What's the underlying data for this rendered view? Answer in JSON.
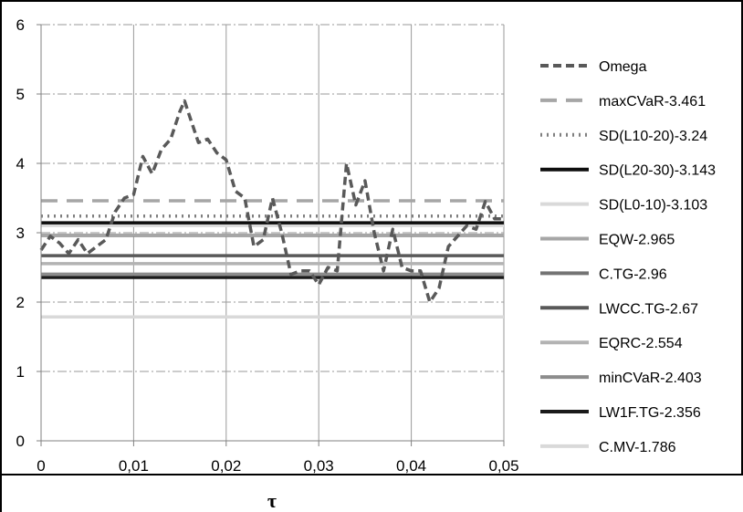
{
  "chart_data": {
    "type": "line",
    "xlabel": "τ",
    "ylabel": "",
    "xlim": [
      0,
      0.05
    ],
    "ylim": [
      0,
      6
    ],
    "x_ticks": [
      0,
      0.01,
      0.02,
      0.03,
      0.04,
      0.05
    ],
    "x_tick_labels": [
      "0",
      "0,01",
      "0,02",
      "0,03",
      "0,04",
      "0,05"
    ],
    "y_ticks": [
      0,
      1,
      2,
      3,
      4,
      5,
      6
    ],
    "y_tick_labels": [
      "0",
      "1",
      "2",
      "3",
      "4",
      "5",
      "6"
    ],
    "grid": true,
    "legend_position": "right",
    "series": [
      {
        "name": "Omega",
        "style": "dashed",
        "color": "#595959",
        "x": [
          0,
          0.001,
          0.002,
          0.003,
          0.004,
          0.005,
          0.006,
          0.007,
          0.008,
          0.009,
          0.01,
          0.011,
          0.012,
          0.013,
          0.014,
          0.015,
          0.0155,
          0.016,
          0.017,
          0.018,
          0.019,
          0.02,
          0.021,
          0.022,
          0.023,
          0.024,
          0.025,
          0.026,
          0.027,
          0.028,
          0.029,
          0.03,
          0.031,
          0.032,
          0.033,
          0.034,
          0.035,
          0.036,
          0.037,
          0.038,
          0.039,
          0.04,
          0.041,
          0.042,
          0.043,
          0.044,
          0.045,
          0.046,
          0.047,
          0.048,
          0.049,
          0.05
        ],
        "y": [
          2.75,
          2.95,
          2.85,
          2.7,
          2.9,
          2.7,
          2.8,
          2.9,
          3.3,
          3.5,
          3.55,
          4.1,
          3.85,
          4.2,
          4.35,
          4.75,
          4.9,
          4.7,
          4.3,
          4.35,
          4.15,
          4.05,
          3.6,
          3.5,
          2.8,
          2.9,
          3.5,
          3.0,
          2.4,
          2.45,
          2.45,
          2.25,
          2.5,
          2.45,
          4.0,
          3.4,
          3.75,
          3.0,
          2.45,
          3.05,
          2.5,
          2.45,
          2.45,
          2.0,
          2.2,
          2.8,
          2.95,
          3.1,
          3.05,
          3.45,
          3.2,
          3.2
        ]
      },
      {
        "name": "maxCVaR-3.461",
        "value": 3.461,
        "style": "longdash",
        "color": "#a6a6a6"
      },
      {
        "name": "SD(L10-20)-3.24",
        "value": 3.24,
        "style": "dotted",
        "color": "#7f7f7f"
      },
      {
        "name": "SD(L20-30)-3.143",
        "value": 3.143,
        "style": "solid",
        "color": "#0d0d0d"
      },
      {
        "name": "SD(L0-10)-3.103",
        "value": 3.103,
        "style": "solid",
        "color": "#d9d9d9"
      },
      {
        "name": "EQW-2.965",
        "value": 2.965,
        "style": "solid",
        "color": "#a6a6a6"
      },
      {
        "name": "C.TG-2.96",
        "value": 2.96,
        "style": "solid",
        "color": "#737373"
      },
      {
        "name": "LWCC.TG-2.67",
        "value": 2.67,
        "style": "solid",
        "color": "#595959"
      },
      {
        "name": "EQRC-2.554",
        "value": 2.554,
        "style": "solid",
        "color": "#b3b3b3"
      },
      {
        "name": "minCVaR-2.403",
        "value": 2.403,
        "style": "solid",
        "color": "#8c8c8c"
      },
      {
        "name": "LW1F.TG-2.356",
        "value": 2.356,
        "style": "solid",
        "color": "#1a1a1a"
      },
      {
        "name": "C.MV-1.786",
        "value": 1.786,
        "style": "solid",
        "color": "#d9d9d9"
      }
    ]
  }
}
